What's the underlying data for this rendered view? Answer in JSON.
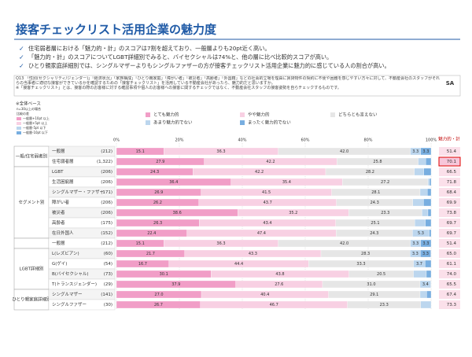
{
  "header": {
    "title": "接客チェックリスト活用企業の魅力度"
  },
  "bullets": [
    "住宅弱者層における「魅力的・計」のスコアは7割を超えており、一般層よりも20pt近く高い。",
    "「魅力的・計」のスコアについてLGBT詳細別でみると、バイセクシャルは74%と、他の層に比べ比較的スコアが高い。",
    "ひとり親家庭詳細別では、シングルマザーよりもシングルファザーの方が接客チェックリスト活用企業に魅力的に感じている人の割合が高い。"
  ],
  "question": {
    "text": "Q13 「性別(セクシャリティ/ジェンダー)」「経済状況」「家族構成」「ひとり親家庭」「障がい者」「被災者」「高齢者」「外国籍」などの社会的立場を理由に賃貸物件の契約に不便や困難を感じやすい方々に対して、不動産会社のスタッフがそれらの当事者に適切な接客ができているかを確認するための「接客チェックリスト」を活用している不動産会社があったら、魅力的だと思いますか。",
    "note": "※「接客チェックリスト」とは、接客の際のお客様に対する確認事項や個人のお客様への接客に関するチェックではなく、不動産会社スタッフの接客姿勢を自らチェックするものです。",
    "answer_type": "SA"
  },
  "chart_data": {
    "type": "stacked-bar",
    "base_label": "※全体ベース",
    "compare_legend": [
      "n=30以上の場合",
      "比較の差",
      "一般層+10pt 以上",
      "一般層+5pt 以上",
      "一般層-5pt 以下",
      "一般層-10pt 以下"
    ],
    "total_header": "魅力的・計",
    "xlim": [
      0,
      100
    ],
    "xticks": [
      {
        "value": 0,
        "label": "0%"
      },
      {
        "value": 20,
        "label": "20%"
      },
      {
        "value": 40,
        "label": "40%"
      },
      {
        "value": 60,
        "label": "60%"
      },
      {
        "value": 80,
        "label": "80%"
      },
      {
        "value": 100,
        "label": "100%"
      }
    ],
    "series": [
      {
        "name": "とても魅力的",
        "color": "#f19ec7"
      },
      {
        "name": "やや魅力的",
        "color": "#f8d0e3"
      },
      {
        "name": "どちらとも言えない",
        "color": "#e6e6e6"
      },
      {
        "name": "あまり魅力的でない",
        "color": "#bcd6ee"
      },
      {
        "name": "まったく魅力的でない",
        "color": "#78aee0"
      }
    ],
    "groups": [
      {
        "label": "一般/住宅弱者別",
        "rows": [
          {
            "label": "一般層",
            "n": "(212)",
            "values": [
              15.1,
              36.3,
              42,
              3.3,
              3.3
            ],
            "value_labels": [
              "15.1",
              "36.3",
              "42.0",
              "3.3",
              "3.3"
            ],
            "total": 51.4
          },
          {
            "label": "住宅弱者層",
            "n": "(1,322)",
            "values": [
              27.9,
              42.2,
              25.8,
              2.4,
              1.7
            ],
            "value_labels": [
              "27.9",
              "42.2",
              "25.8",
              null,
              null
            ],
            "total": 70.1,
            "highlight": true
          }
        ]
      },
      {
        "label": "セグメント別",
        "rows": [
          {
            "label": "LGBT",
            "n": "(206)",
            "values": [
              24.3,
              42.2,
              28.2,
              3.0,
              2.3
            ],
            "value_labels": [
              "24.3",
              "42.2",
              "28.2",
              null,
              null
            ],
            "total": 66.5
          },
          {
            "label": "生活困窮層",
            "n": "(206)",
            "values": [
              36.4,
              35.4,
              27.2,
              0.5,
              0.5
            ],
            "value_labels": [
              "36.4",
              "35.4",
              "27.2",
              null,
              null
            ],
            "total": 71.8
          },
          {
            "label": "シングルマザー・ファザー",
            "n": "(171)",
            "values": [
              26.9,
              41.5,
              28.1,
              2.3,
              1.2
            ],
            "value_labels": [
              "26.9",
              "41.5",
              "28.1",
              null,
              null
            ],
            "total": 68.4
          },
          {
            "label": "障がい者",
            "n": "(206)",
            "values": [
              26.2,
              43.7,
              24.3,
              3.4,
              2.4
            ],
            "value_labels": [
              "26.2",
              "43.7",
              "24.3",
              null,
              null
            ],
            "total": 69.9
          },
          {
            "label": "被災者",
            "n": "(206)",
            "values": [
              38.6,
              35.2,
              23.3,
              1.9,
              1.0
            ],
            "value_labels": [
              "38.6",
              "35.2",
              "23.3",
              null,
              null
            ],
            "total": 73.8
          },
          {
            "label": "高齢者",
            "n": "(175)",
            "values": [
              26.3,
              43.4,
              25.1,
              3.4,
              1.8
            ],
            "value_labels": [
              "26.3",
              "43.4",
              "25.1",
              null,
              null
            ],
            "total": 69.7
          },
          {
            "label": "在日外国人",
            "n": "(152)",
            "values": [
              22.4,
              47.4,
              24.3,
              5.3,
              0.6
            ],
            "value_labels": [
              "22.4",
              "47.4",
              "24.3",
              "5.3",
              null
            ],
            "total": 69.7
          }
        ]
      },
      {
        "label": null,
        "rows": [
          {
            "label": "一般層",
            "n": "(212)",
            "values": [
              15.1,
              36.3,
              42,
              3.3,
              3.3
            ],
            "value_labels": [
              "15.1",
              "36.3",
              "42.0",
              "3.3",
              "3.3"
            ],
            "total": 51.4
          }
        ]
      },
      {
        "label": "LGBT詳細別",
        "rows": [
          {
            "label": "L(レズビアン)",
            "n": "(60)",
            "values": [
              21.7,
              43.3,
              28.3,
              3.3,
              3.3
            ],
            "value_labels": [
              "21.7",
              "43.3",
              "28.3",
              "3.3",
              "3.3"
            ],
            "total": 65,
            "total_label": "65.0"
          },
          {
            "label": "G(ゲイ)",
            "n": "(54)",
            "values": [
              16.7,
              44.4,
              33.3,
              3.7,
              1.9
            ],
            "value_labels": [
              "16.7",
              "44.4",
              "33.3",
              "3.7",
              null
            ],
            "total": 61.1
          },
          {
            "label": "B(バイセクシャル)",
            "n": "(73)",
            "values": [
              30.1,
              43.8,
              20.5,
              4.1,
              1.5
            ],
            "value_labels": [
              "30.1",
              "43.8",
              "20.5",
              null,
              null
            ],
            "total": 74,
            "total_label": "74.0"
          },
          {
            "label": "T(トランスジェンダー)",
            "n": "(29)",
            "values": [
              37.9,
              27.6,
              31,
              3.4,
              0
            ],
            "value_labels": [
              "37.9",
              "27.6",
              "31.0",
              "3.4",
              null
            ],
            "total": 65.5
          }
        ]
      },
      {
        "label": "ひとり親家庭詳細別",
        "rows": [
          {
            "label": "シングルマザー",
            "n": "(141)",
            "values": [
              27,
              40.4,
              29.1,
              2.1,
              1.4
            ],
            "value_labels": [
              "27.0",
              "40.4",
              "29.1",
              null,
              null
            ],
            "total": 67.4
          },
          {
            "label": "シングルファザー",
            "n": "(30)",
            "values": [
              26.7,
              46.7,
              23.3,
              3.3,
              0
            ],
            "value_labels": [
              "26.7",
              "46.7",
              "23.3",
              null,
              null
            ],
            "total": 73.3
          }
        ]
      }
    ]
  }
}
